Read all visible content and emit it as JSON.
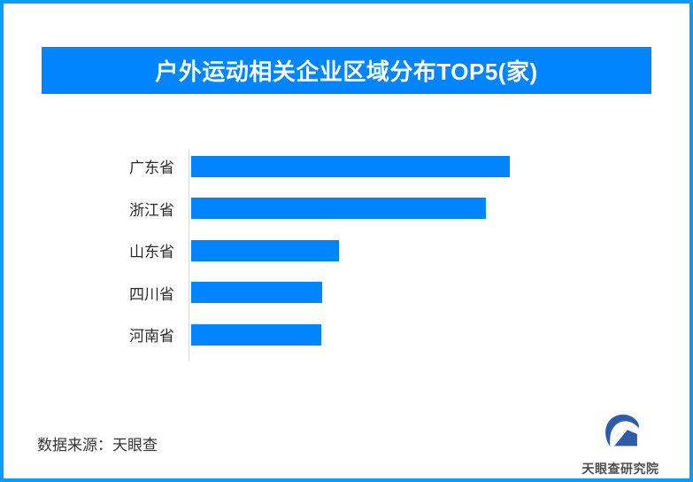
{
  "frame": {
    "border_color": "#0a9cfa",
    "background_color": "#ffffff"
  },
  "header": {
    "title": "户外运动相关企业区域分布TOP5(家)",
    "bg_color": "#0085ff",
    "text_color": "#ffffff"
  },
  "chart_data": {
    "type": "bar",
    "orientation": "horizontal",
    "title": "户外运动相关企业区域分布TOP5(家)",
    "categories": [
      "广东省",
      "浙江省",
      "山东省",
      "四川省",
      "河南省"
    ],
    "values_relative_pct": [
      100,
      92.5,
      46.4,
      41.1,
      40.8
    ],
    "unit": "家",
    "value_labels_shown": false,
    "xlabel": "",
    "ylabel": "",
    "gridlines": false,
    "legend_position": "none",
    "bar_color": "#0085ff",
    "axis_line_color": "#d9d9d9",
    "category_label_color": "#2b2b2b"
  },
  "footer": {
    "source_label": "数据来源：天眼查",
    "logo_text": "天眼查研究院",
    "logo_icon": "tianyancha-eye-swoosh-icon",
    "logo_color": "#2e5ca8"
  }
}
